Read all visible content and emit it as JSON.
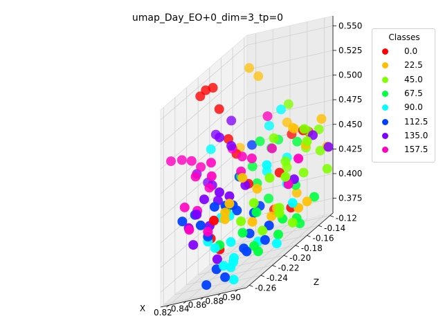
{
  "chart_data": {
    "type": "scatter",
    "projection": "3d",
    "title": "umap_Day_EO+0_dim=3_tp=0",
    "xlabel": "X",
    "ylabel": "",
    "zlabel": "Z",
    "xlim": [
      0.81,
      0.91
    ],
    "ylim": [
      -0.265,
      -0.115
    ],
    "zlim": [
      0.36,
      0.56
    ],
    "x_ticks": [
      "0.82",
      "0.84",
      "0.86",
      "0.88",
      "0.90"
    ],
    "y_ticks": [
      "-0.26",
      "-0.24",
      "-0.22",
      "-0.20",
      "-0.18",
      "-0.16",
      "-0.14",
      "-0.12"
    ],
    "z_ticks": [
      "0.375",
      "0.400",
      "0.425",
      "0.450",
      "0.475",
      "0.500",
      "0.525",
      "0.550"
    ],
    "grid": true,
    "legend": {
      "title": "Classes",
      "position": "right"
    },
    "series": [
      {
        "name": "0.0",
        "color": "#ff0000",
        "points": [
          [
            0.826,
            -0.22,
            0.548
          ],
          [
            0.829,
            -0.215,
            0.551
          ],
          [
            0.834,
            -0.21,
            0.55
          ],
          [
            0.838,
            -0.205,
            0.525
          ],
          [
            0.844,
            -0.198,
            0.49
          ],
          [
            0.848,
            -0.19,
            0.47
          ],
          [
            0.862,
            -0.19,
            0.437
          ],
          [
            0.865,
            -0.15,
            0.39
          ],
          [
            0.845,
            -0.23,
            0.405
          ],
          [
            0.852,
            -0.225,
            0.39
          ],
          [
            0.872,
            -0.13,
            0.455
          ],
          [
            0.885,
            -0.12,
            0.45
          ],
          [
            0.878,
            -0.16,
            0.43
          ],
          [
            0.892,
            -0.14,
            0.46
          ],
          [
            0.862,
            -0.25,
            0.43
          ],
          [
            0.888,
            -0.155,
            0.39
          ]
        ]
      },
      {
        "name": "22.5",
        "color": "#ffbf00",
        "points": [
          [
            0.846,
            -0.165,
            0.545
          ],
          [
            0.852,
            -0.158,
            0.532
          ],
          [
            0.842,
            -0.175,
            0.47
          ],
          [
            0.87,
            -0.135,
            0.47
          ],
          [
            0.875,
            -0.13,
            0.46
          ],
          [
            0.88,
            -0.14,
            0.465
          ],
          [
            0.9,
            -0.12,
            0.46
          ],
          [
            0.905,
            -0.118,
            0.43
          ],
          [
            0.895,
            -0.14,
            0.445
          ],
          [
            0.888,
            -0.145,
            0.4
          ],
          [
            0.872,
            -0.19,
            0.43
          ],
          [
            0.885,
            -0.175,
            0.4
          ],
          [
            0.9,
            -0.16,
            0.39
          ],
          [
            0.88,
            -0.21,
            0.405
          ],
          [
            0.865,
            -0.235,
            0.43
          ],
          [
            0.868,
            -0.24,
            0.425
          ],
          [
            0.87,
            -0.235,
            0.438
          ],
          [
            0.865,
            -0.205,
            0.45
          ],
          [
            0.882,
            -0.18,
            0.395
          ],
          [
            0.902,
            -0.148,
            0.39
          ]
        ]
      },
      {
        "name": "45.0",
        "color": "#80ff00",
        "points": [
          [
            0.875,
            -0.14,
            0.49
          ],
          [
            0.89,
            -0.13,
            0.455
          ],
          [
            0.897,
            -0.12,
            0.45
          ],
          [
            0.902,
            -0.125,
            0.43
          ],
          [
            0.892,
            -0.135,
            0.44
          ],
          [
            0.88,
            -0.15,
            0.43
          ],
          [
            0.885,
            -0.16,
            0.44
          ],
          [
            0.898,
            -0.148,
            0.42
          ],
          [
            0.9,
            -0.145,
            0.45
          ],
          [
            0.9,
            -0.15,
            0.465
          ],
          [
            0.91,
            -0.125,
            0.41
          ],
          [
            0.888,
            -0.175,
            0.4
          ],
          [
            0.885,
            -0.2,
            0.39
          ],
          [
            0.898,
            -0.19,
            0.4
          ],
          [
            0.875,
            -0.2,
            0.42
          ],
          [
            0.9,
            -0.17,
            0.38
          ],
          [
            0.87,
            -0.215,
            0.41
          ],
          [
            0.89,
            -0.195,
            0.44
          ],
          [
            0.895,
            -0.175,
            0.43
          ],
          [
            0.878,
            -0.17,
            0.47
          ]
        ]
      },
      {
        "name": "67.5",
        "color": "#00ff40",
        "points": [
          [
            0.862,
            -0.17,
            0.47
          ],
          [
            0.87,
            -0.15,
            0.46
          ],
          [
            0.885,
            -0.14,
            0.45
          ],
          [
            0.865,
            -0.155,
            0.455
          ],
          [
            0.86,
            -0.18,
            0.45
          ],
          [
            0.862,
            -0.175,
            0.43
          ],
          [
            0.872,
            -0.17,
            0.41
          ],
          [
            0.86,
            -0.2,
            0.45
          ],
          [
            0.89,
            -0.15,
            0.41
          ],
          [
            0.895,
            -0.15,
            0.37
          ],
          [
            0.88,
            -0.2,
            0.37
          ],
          [
            0.882,
            -0.21,
            0.38
          ],
          [
            0.898,
            -0.16,
            0.38
          ],
          [
            0.905,
            -0.14,
            0.39
          ],
          [
            0.895,
            -0.18,
            0.39
          ],
          [
            0.878,
            -0.2,
            0.41
          ],
          [
            0.86,
            -0.225,
            0.43
          ],
          [
            0.872,
            -0.215,
            0.398
          ],
          [
            0.89,
            -0.18,
            0.375
          ],
          [
            0.862,
            -0.24,
            0.4
          ]
        ]
      },
      {
        "name": "90.0",
        "color": "#00ffff",
        "points": [
          [
            0.835,
            -0.215,
            0.49
          ],
          [
            0.85,
            -0.22,
            0.42
          ],
          [
            0.866,
            -0.16,
            0.48
          ],
          [
            0.873,
            -0.15,
            0.49
          ],
          [
            0.88,
            -0.15,
            0.44
          ],
          [
            0.87,
            -0.17,
            0.438
          ],
          [
            0.88,
            -0.185,
            0.45
          ],
          [
            0.892,
            -0.168,
            0.42
          ],
          [
            0.88,
            -0.2,
            0.38
          ],
          [
            0.895,
            -0.19,
            0.37
          ],
          [
            0.86,
            -0.22,
            0.42
          ],
          [
            0.872,
            -0.23,
            0.38
          ],
          [
            0.875,
            -0.235,
            0.36
          ],
          [
            0.875,
            -0.24,
            0.375
          ],
          [
            0.855,
            -0.25,
            0.41
          ],
          [
            0.86,
            -0.245,
            0.4
          ],
          [
            0.878,
            -0.24,
            0.38
          ],
          [
            0.9,
            -0.17,
            0.4
          ],
          [
            0.865,
            -0.225,
            0.395
          ],
          [
            0.87,
            -0.245,
            0.38
          ]
        ]
      },
      {
        "name": "112.5",
        "color": "#0040ff",
        "points": [
          [
            0.832,
            -0.26,
            0.44
          ],
          [
            0.84,
            -0.25,
            0.44
          ],
          [
            0.856,
            -0.175,
            0.47
          ],
          [
            0.858,
            -0.2,
            0.45
          ],
          [
            0.862,
            -0.21,
            0.42
          ],
          [
            0.87,
            -0.2,
            0.39
          ],
          [
            0.87,
            -0.21,
            0.38
          ],
          [
            0.872,
            -0.185,
            0.41
          ],
          [
            0.864,
            -0.22,
            0.43
          ],
          [
            0.856,
            -0.24,
            0.44
          ],
          [
            0.862,
            -0.23,
            0.435
          ],
          [
            0.875,
            -0.2,
            0.41
          ],
          [
            0.88,
            -0.22,
            0.38
          ],
          [
            0.888,
            -0.2,
            0.38
          ],
          [
            0.86,
            -0.26,
            0.37
          ],
          [
            0.875,
            -0.25,
            0.37
          ],
          [
            0.865,
            -0.25,
            0.38
          ],
          [
            0.886,
            -0.19,
            0.39
          ],
          [
            0.855,
            -0.25,
            0.415
          ],
          [
            0.85,
            -0.255,
            0.43
          ]
        ]
      },
      {
        "name": "135.0",
        "color": "#8000ff",
        "points": [
          [
            0.822,
            -0.22,
            0.47
          ],
          [
            0.828,
            -0.21,
            0.455
          ],
          [
            0.834,
            -0.205,
            0.5
          ],
          [
            0.842,
            -0.19,
            0.505
          ],
          [
            0.84,
            -0.22,
            0.455
          ],
          [
            0.845,
            -0.215,
            0.5
          ],
          [
            0.852,
            -0.205,
            0.485
          ],
          [
            0.836,
            -0.255,
            0.43
          ],
          [
            0.844,
            -0.24,
            0.45
          ],
          [
            0.85,
            -0.225,
            0.44
          ],
          [
            0.86,
            -0.22,
            0.44
          ],
          [
            0.838,
            -0.25,
            0.41
          ],
          [
            0.847,
            -0.235,
            0.42
          ],
          [
            0.855,
            -0.23,
            0.45
          ],
          [
            0.842,
            -0.25,
            0.44
          ],
          [
            0.865,
            -0.2,
            0.44
          ],
          [
            0.898,
            -0.132,
            0.45
          ],
          [
            0.908,
            -0.12,
            0.43
          ],
          [
            0.895,
            -0.16,
            0.42
          ],
          [
            0.866,
            -0.25,
            0.39
          ]
        ]
      },
      {
        "name": "157.5",
        "color": "#ff00bf",
        "points": [
          [
            0.812,
            -0.25,
            0.5
          ],
          [
            0.818,
            -0.24,
            0.495
          ],
          [
            0.826,
            -0.235,
            0.49
          ],
          [
            0.83,
            -0.225,
            0.478
          ],
          [
            0.834,
            -0.24,
            0.475
          ],
          [
            0.842,
            -0.225,
            0.48
          ],
          [
            0.846,
            -0.23,
            0.468
          ],
          [
            0.84,
            -0.225,
            0.455
          ],
          [
            0.828,
            -0.25,
            0.45
          ],
          [
            0.836,
            -0.24,
            0.44
          ],
          [
            0.85,
            -0.2,
            0.48
          ],
          [
            0.858,
            -0.195,
            0.468
          ],
          [
            0.86,
            -0.2,
            0.455
          ],
          [
            0.866,
            -0.19,
            0.462
          ],
          [
            0.84,
            -0.26,
            0.43
          ],
          [
            0.864,
            -0.16,
            0.49
          ],
          [
            0.876,
            -0.17,
            0.46
          ],
          [
            0.895,
            -0.17,
            0.42
          ],
          [
            0.9,
            -0.16,
            0.44
          ],
          [
            0.855,
            -0.25,
            0.42
          ]
        ]
      }
    ]
  }
}
